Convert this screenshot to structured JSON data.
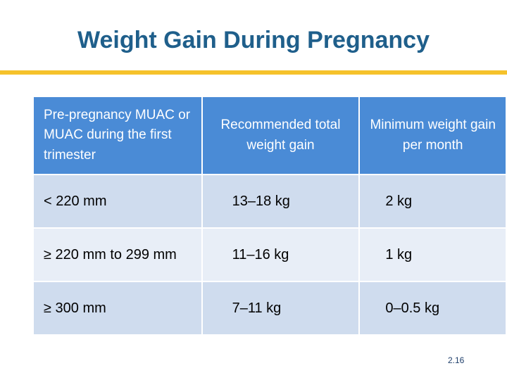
{
  "title": "Weight Gain During Pregnancy",
  "table": {
    "headers": [
      "Pre-pregnancy MUAC or MUAC during the first trimester",
      "Recommended total weight gain",
      "Minimum weight gain per month"
    ],
    "rows": [
      [
        "< 220 mm",
        "13–18 kg",
        "2 kg"
      ],
      [
        "≥ 220 mm to 299 mm",
        "11–16 kg",
        "1 kg"
      ],
      [
        "≥ 300 mm",
        "7–11 kg",
        "0–0.5 kg"
      ]
    ]
  },
  "page_number": "2.16",
  "colors": {
    "title": "#1f5f8b",
    "accent_rule": "#f5c22b",
    "header_bg": "#4a8bd6",
    "row_odd": "#cfdcee",
    "row_even": "#e8eef7"
  }
}
